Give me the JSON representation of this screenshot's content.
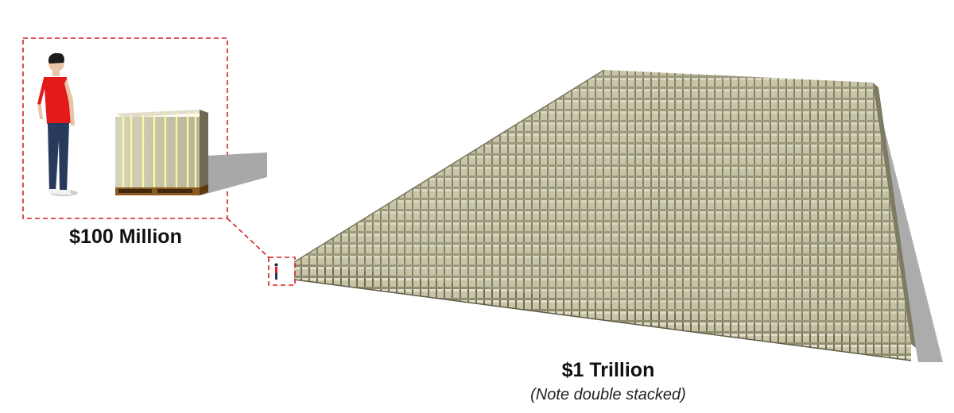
{
  "labels": {
    "hundred_million": "$100 Million",
    "one_trillion": "$1 Trillion",
    "note": "(Note double stacked)"
  },
  "scene": {
    "icons": [
      "person-icon",
      "money-pallet-icon",
      "money-field-icon"
    ],
    "colors": {
      "callout": "#d62020",
      "shirt": "#e21a1a",
      "jeans": "#283a5b",
      "money": "#b9b69a",
      "money_dark": "#6f6c55",
      "shadow": "#9d9d9d",
      "pallet": "#8a5a20"
    }
  }
}
